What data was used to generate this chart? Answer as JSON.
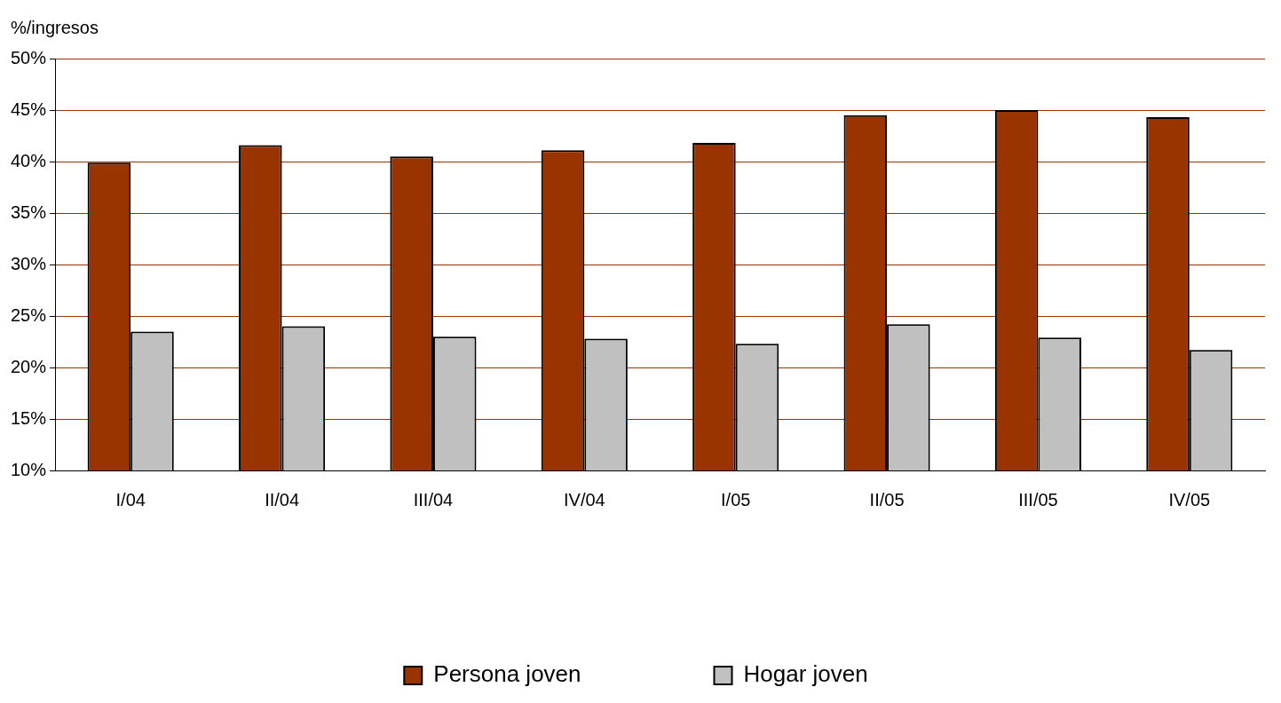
{
  "chart_data": {
    "type": "bar",
    "ylabel": "%/ingresos",
    "categories": [
      "I/04",
      "II/04",
      "III/04",
      "IV/04",
      "I/05",
      "II/05",
      "III/05",
      "IV/05"
    ],
    "series": [
      {
        "name": "Persona joven",
        "color": "#993300",
        "values": [
          39.9,
          41.6,
          40.5,
          41.1,
          41.8,
          44.5,
          45.0,
          44.3
        ]
      },
      {
        "name": "Hogar joven",
        "color": "#c0c0c0",
        "values": [
          23.5,
          24.0,
          23.0,
          22.8,
          22.3,
          24.2,
          22.9,
          21.7
        ]
      }
    ],
    "ylim": [
      10,
      50
    ],
    "yticks": [
      {
        "value": 10,
        "label": "10%"
      },
      {
        "value": 15,
        "label": "15%"
      },
      {
        "value": 20,
        "label": "20%"
      },
      {
        "value": 25,
        "label": "25%"
      },
      {
        "value": 30,
        "label": "30%"
      },
      {
        "value": 35,
        "label": "35%"
      },
      {
        "value": 40,
        "label": "40%"
      },
      {
        "value": 45,
        "label": "45%"
      },
      {
        "value": 50,
        "label": "50%"
      }
    ],
    "grid": "y",
    "legend": "bottom"
  }
}
